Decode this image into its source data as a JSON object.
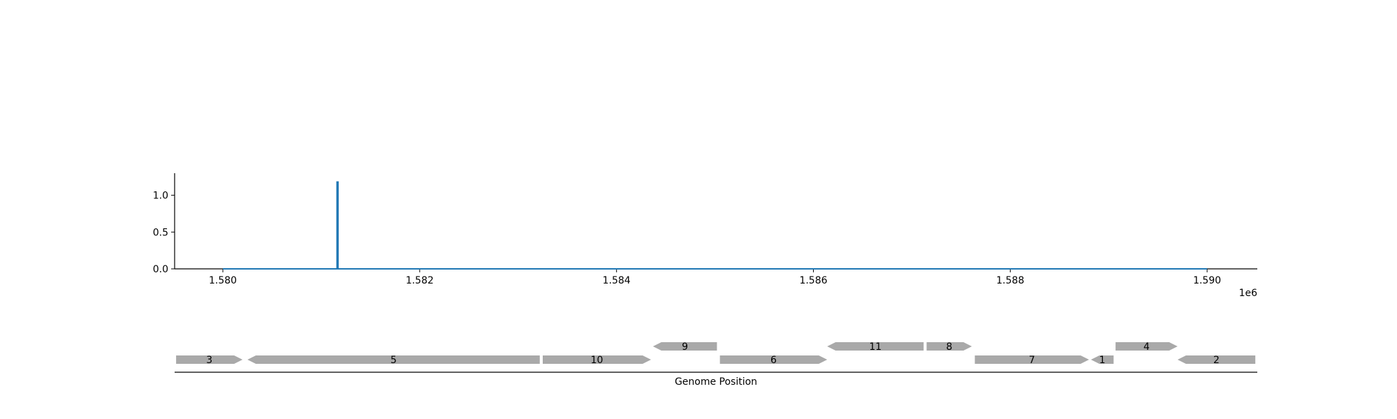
{
  "chart_data": [
    {
      "type": "line",
      "title": "",
      "xlabel": "",
      "ylabel": "",
      "x_offset_label": "1e6",
      "xlim": [
        1.57951,
        1.59051
      ],
      "ylim": [
        0,
        1.3
      ],
      "x_ticks": [
        {
          "value": 1.58,
          "label": "1.580"
        },
        {
          "value": 1.582,
          "label": "1.582"
        },
        {
          "value": 1.584,
          "label": "1.584"
        },
        {
          "value": 1.586,
          "label": "1.586"
        },
        {
          "value": 1.588,
          "label": "1.588"
        },
        {
          "value": 1.59,
          "label": "1.590"
        }
      ],
      "y_ticks": [
        {
          "value": 0.0,
          "label": "0.0"
        },
        {
          "value": 0.5,
          "label": "0.5"
        },
        {
          "value": 1.0,
          "label": "1.0"
        }
      ],
      "grid": false,
      "series": [
        {
          "color": "#1f77b4",
          "x": [
            1.58,
            1.58116,
            1.58116,
            1.58117,
            1.58117,
            1.59
          ],
          "y": [
            0,
            0,
            1.18,
            1.18,
            0,
            0
          ]
        }
      ]
    },
    {
      "type": "gene-map",
      "xlabel": "Genome Position",
      "xlim": [
        1.57951,
        1.59051
      ],
      "gene_color": "#a9a9a9",
      "genes": [
        {
          "label": "3",
          "start": 1.579525,
          "end": 1.5802,
          "strand": "+",
          "row": 0
        },
        {
          "label": "5",
          "start": 1.58025,
          "end": 1.58322,
          "strand": "-",
          "row": 0
        },
        {
          "label": "10",
          "start": 1.58325,
          "end": 1.58435,
          "strand": "+",
          "row": 0
        },
        {
          "label": "9",
          "start": 1.58437,
          "end": 1.58502,
          "strand": "-",
          "row": 1
        },
        {
          "label": "6",
          "start": 1.58505,
          "end": 1.58614,
          "strand": "+",
          "row": 0
        },
        {
          "label": "11",
          "start": 1.58614,
          "end": 1.58712,
          "strand": "-",
          "row": 1
        },
        {
          "label": "8",
          "start": 1.58715,
          "end": 1.58761,
          "strand": "+",
          "row": 1
        },
        {
          "label": "7",
          "start": 1.58764,
          "end": 1.5888,
          "strand": "+",
          "row": 0
        },
        {
          "label": "1",
          "start": 1.58882,
          "end": 1.58905,
          "strand": "-",
          "row": 0
        },
        {
          "label": "4",
          "start": 1.58907,
          "end": 1.5897,
          "strand": "+",
          "row": 1
        },
        {
          "label": "2",
          "start": 1.5897,
          "end": 1.59049,
          "strand": "-",
          "row": 0
        }
      ]
    }
  ]
}
